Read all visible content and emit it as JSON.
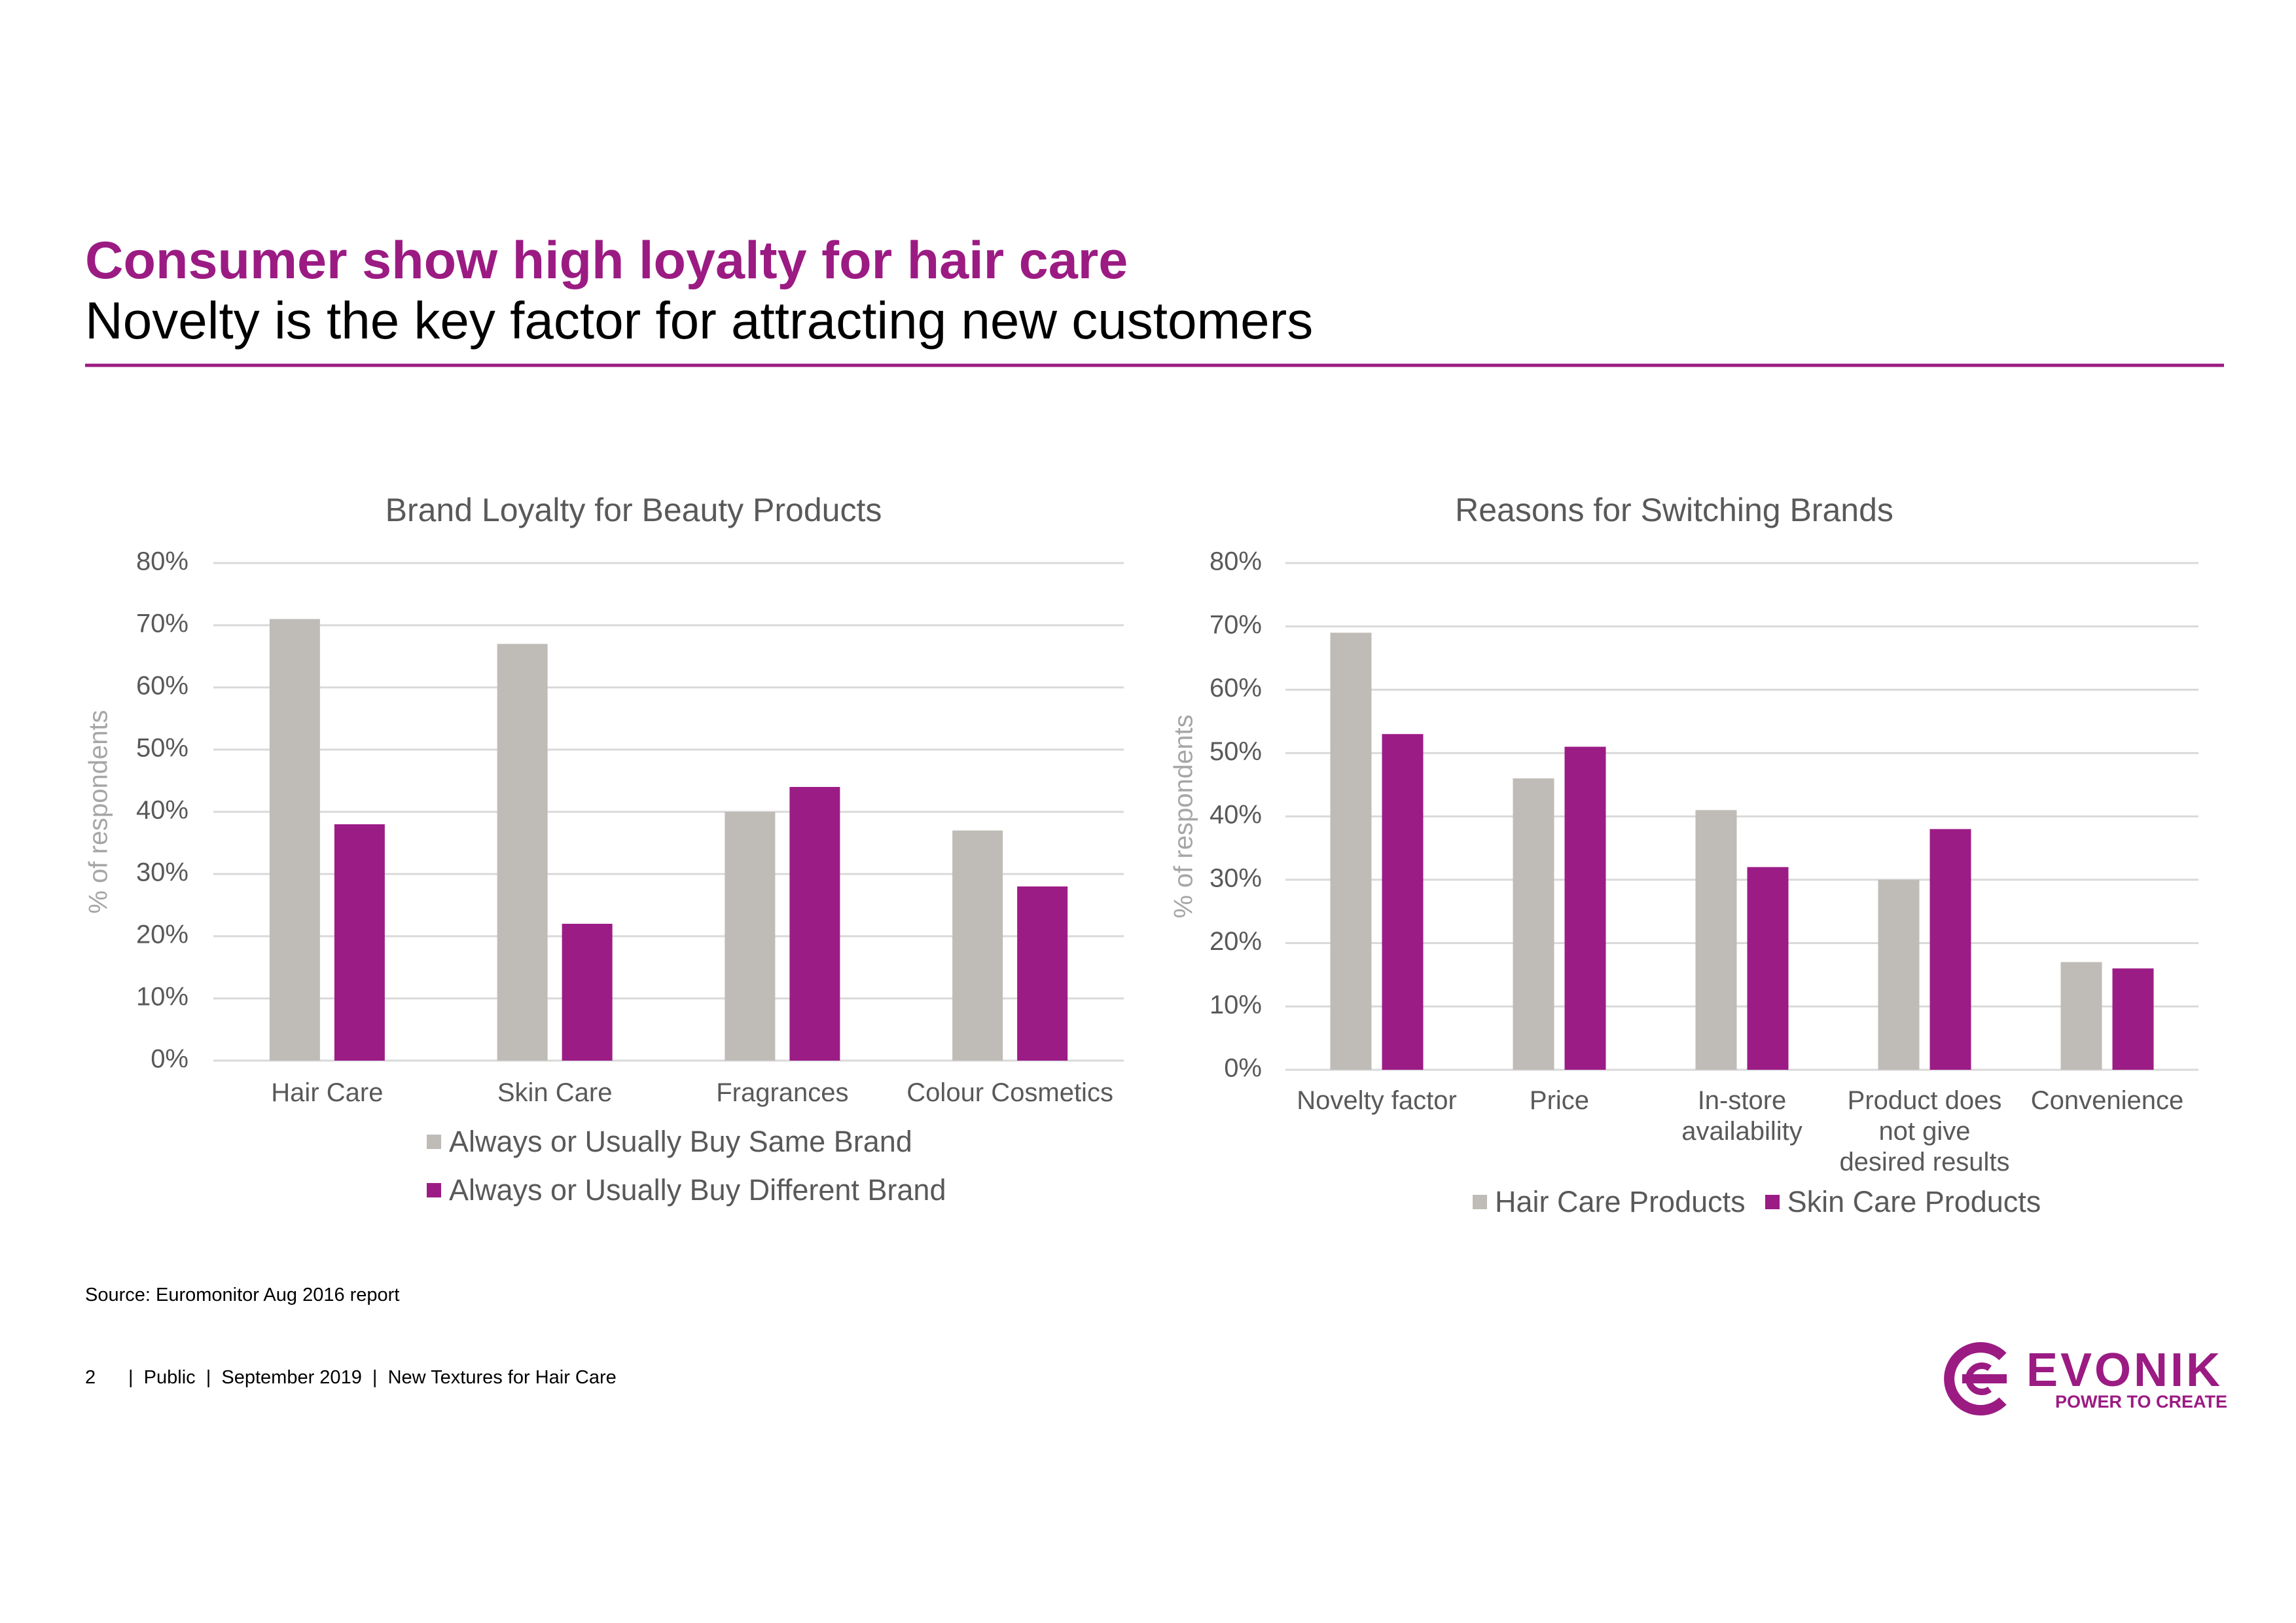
{
  "header": {
    "title": "Consumer show high loyalty for hair care",
    "subtitle": "Novelty is the key factor for attracting new customers"
  },
  "chart_data": [
    {
      "type": "bar",
      "title": "Brand Loyalty for Beauty Products",
      "y_label": "% of respondents",
      "categories": [
        "Hair Care",
        "Skin Care",
        "Fragrances",
        "Colour Cosmetics"
      ],
      "series": [
        {
          "name": "Always or Usually Buy Same Brand",
          "color": "#bfbcb7",
          "values": [
            71,
            67,
            40,
            37
          ]
        },
        {
          "name": "Always or Usually Buy Different Brand",
          "color": "#9c1c86",
          "values": [
            38,
            22,
            44,
            28
          ]
        }
      ],
      "ylim": [
        0,
        80
      ],
      "yticks": [
        {
          "value": 0,
          "label": "0%"
        },
        {
          "value": 10,
          "label": "10%"
        },
        {
          "value": 20,
          "label": "20%"
        },
        {
          "value": 30,
          "label": "30%"
        },
        {
          "value": 40,
          "label": "40%"
        },
        {
          "value": 50,
          "label": "50%"
        },
        {
          "value": 60,
          "label": "60%"
        },
        {
          "value": 70,
          "label": "70%"
        },
        {
          "value": 80,
          "label": "80%"
        }
      ],
      "grid": true,
      "legend": "bottom"
    },
    {
      "type": "bar",
      "title": "Reasons for Switching Brands",
      "y_label": "% of respondents",
      "categories": [
        "Novelty factor",
        "Price",
        "In-store availability",
        "Product does not give desired results",
        "Convenience"
      ],
      "series": [
        {
          "name": "Hair Care Products",
          "color": "#bfbcb7",
          "values": [
            69,
            46,
            41,
            30,
            17
          ]
        },
        {
          "name": "Skin Care Products",
          "color": "#9c1c86",
          "values": [
            53,
            51,
            32,
            38,
            16
          ]
        }
      ],
      "ylim": [
        0,
        80
      ],
      "yticks": [
        {
          "value": 0,
          "label": "0%"
        },
        {
          "value": 10,
          "label": "10%"
        },
        {
          "value": 20,
          "label": "20%"
        },
        {
          "value": 30,
          "label": "30%"
        },
        {
          "value": 40,
          "label": "40%"
        },
        {
          "value": 50,
          "label": "50%"
        },
        {
          "value": 60,
          "label": "60%"
        },
        {
          "value": 70,
          "label": "70%"
        },
        {
          "value": 80,
          "label": "80%"
        }
      ],
      "grid": true,
      "legend": "bottom"
    }
  ],
  "source": "Source: Euromonitor Aug 2016 report",
  "footer": {
    "page": "2",
    "text": "|  Public  |  September 2019  |  New Textures for Hair Care"
  },
  "logo": {
    "brand": "EVONIK",
    "tagline": "POWER TO CREATE"
  }
}
